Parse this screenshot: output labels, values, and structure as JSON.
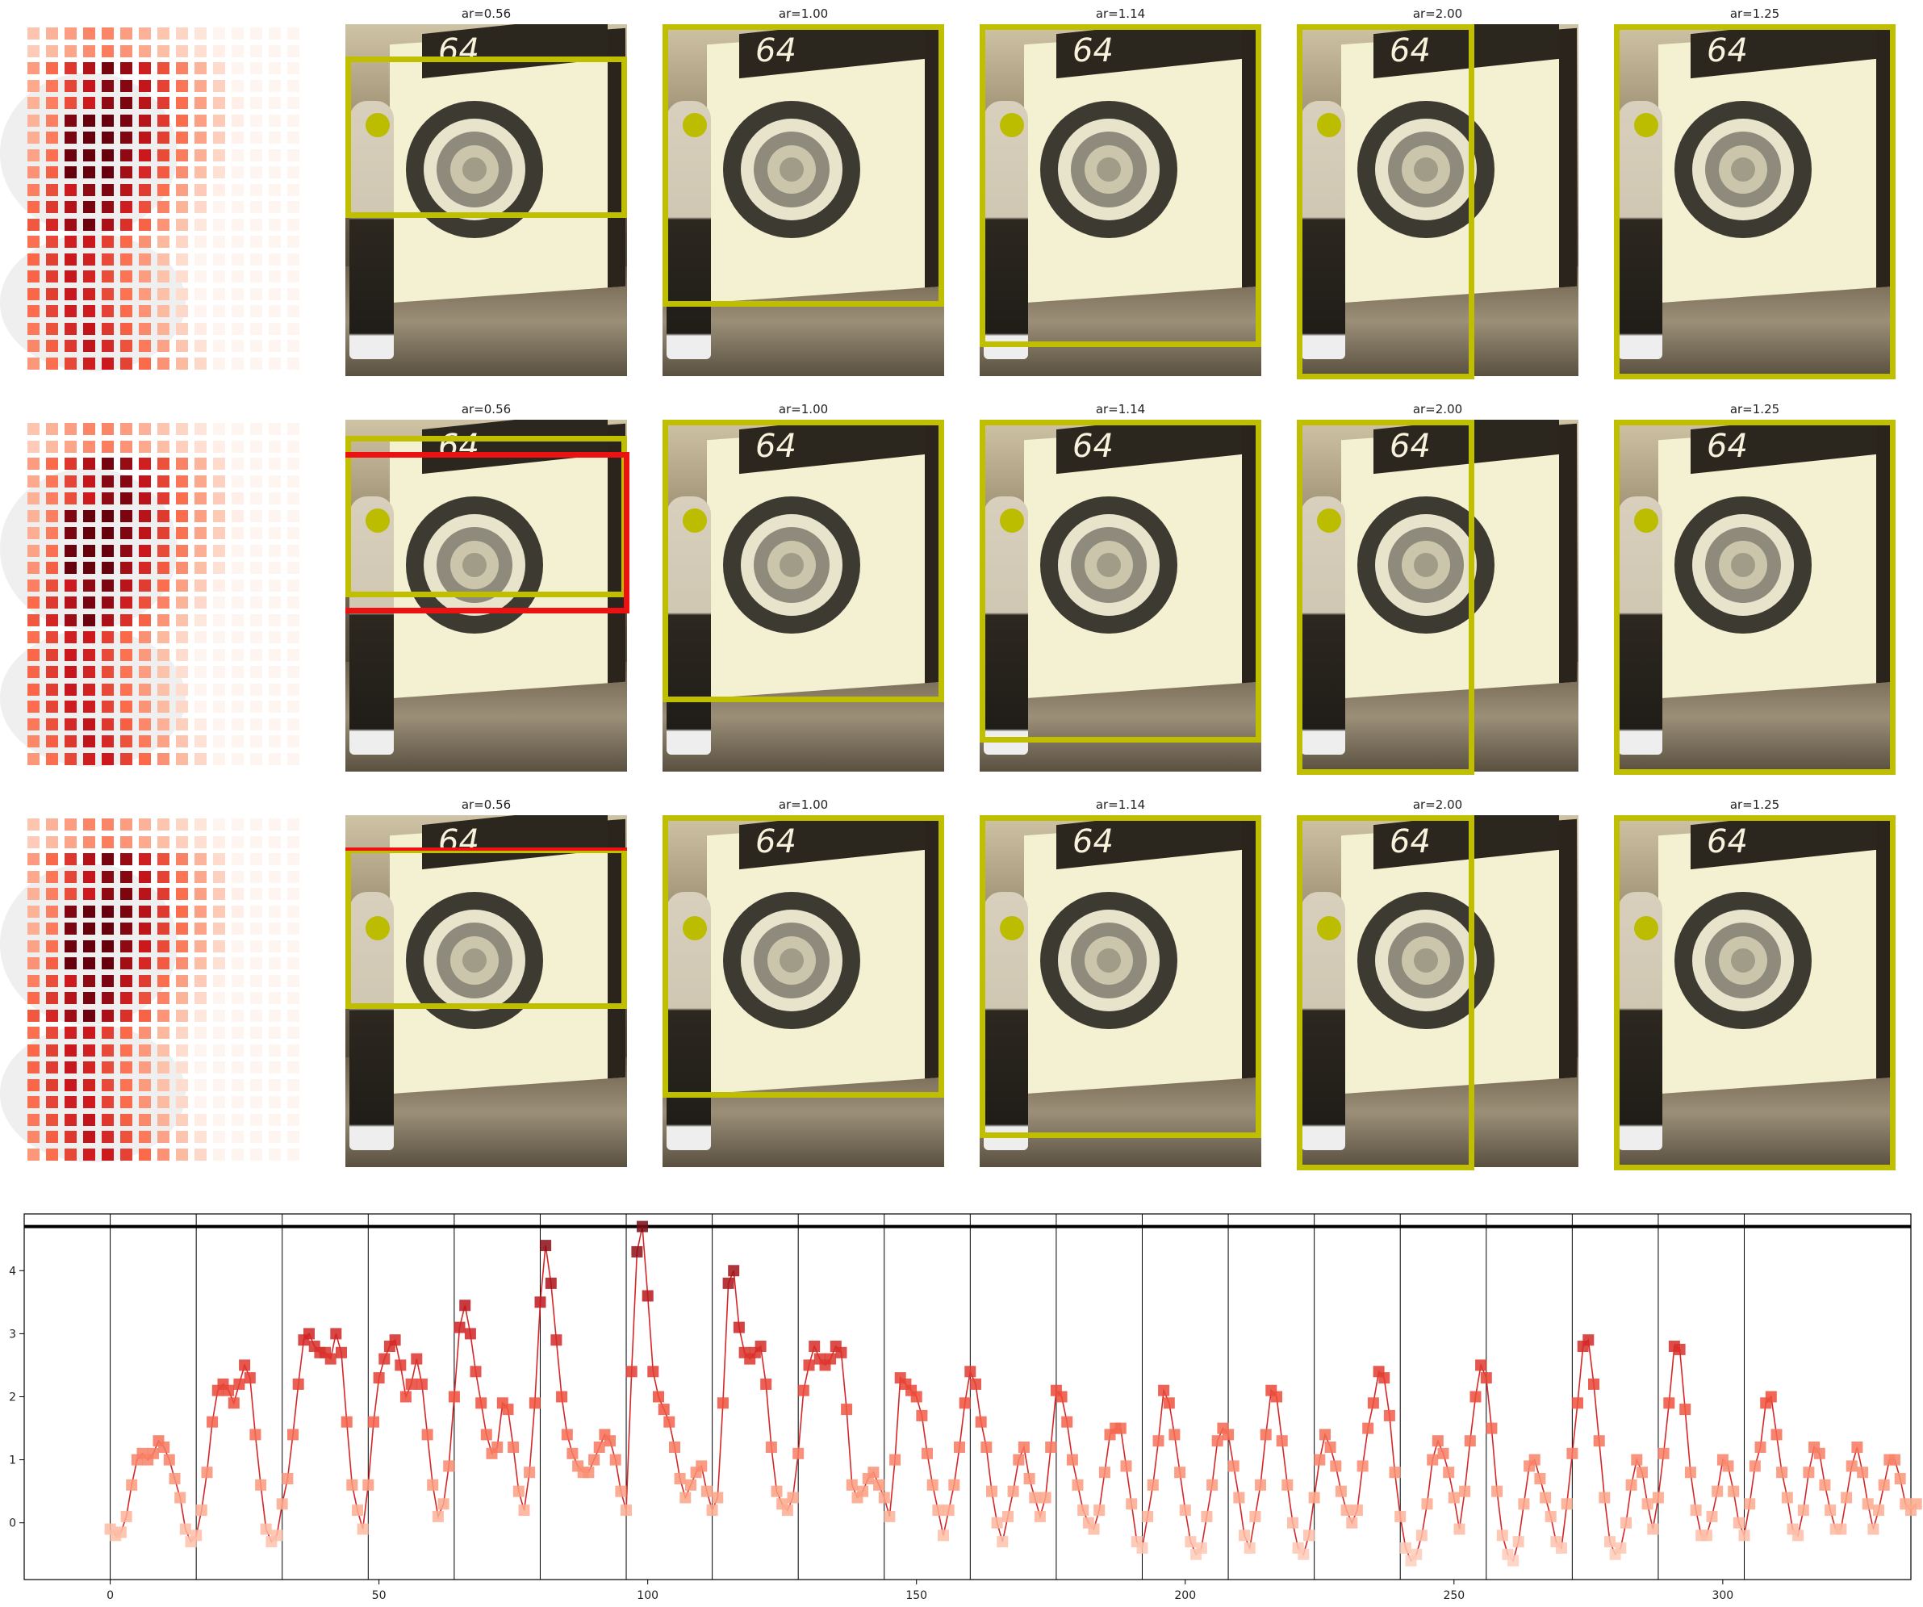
{
  "figure": {
    "panel_titles": [
      "ar=0.56",
      "ar=1.00",
      "ar=1.14",
      "ar=2.00",
      "ar=1.25"
    ],
    "board_number": "64",
    "heatmap_color": "#c0392b",
    "box_color": "#bfbf00",
    "red_box_color": "#ee1111"
  },
  "chart_data": {
    "type": "line",
    "xlim": [
      -16,
      335
    ],
    "ylim": [
      -0.9,
      4.9
    ],
    "xticks": [
      0,
      50,
      100,
      150,
      200,
      250,
      300
    ],
    "yticks": [
      0,
      1,
      2,
      3,
      4
    ],
    "threshold": 4.7,
    "vlines": [
      0,
      16,
      32,
      48,
      64,
      80,
      96,
      112,
      128,
      144,
      160,
      176,
      192,
      208,
      224,
      240,
      256,
      272,
      288,
      304
    ],
    "line_color": "#d62728",
    "series": [
      {
        "values": [
          -0.1,
          -0.2,
          -0.15,
          0.1,
          0.6,
          1.0,
          1.1,
          1.0,
          1.1,
          1.3,
          1.2,
          1.0,
          0.7,
          0.4,
          -0.1,
          -0.3,
          -0.2,
          0.2,
          0.8,
          1.6,
          2.1,
          2.2,
          2.1,
          1.9,
          2.2,
          2.5,
          2.3,
          1.4,
          0.6,
          -0.1,
          -0.3,
          -0.2,
          0.3,
          0.7,
          1.4,
          2.2,
          2.9,
          3.0,
          2.8,
          2.7,
          2.7,
          2.6,
          3.0,
          2.7,
          1.6,
          0.6,
          0.2,
          -0.1,
          0.6,
          1.6,
          2.3,
          2.6,
          2.8,
          2.9,
          2.5,
          2.0,
          2.2,
          2.6,
          2.2,
          1.4,
          0.6,
          0.1,
          0.3,
          0.9,
          2.0,
          3.1,
          3.45,
          3.0,
          2.4,
          1.9,
          1.4,
          1.1,
          1.2,
          1.9,
          1.8,
          1.2,
          0.5,
          0.2,
          0.8,
          1.9,
          3.5,
          4.4,
          3.8,
          2.9,
          2.0,
          1.4,
          1.1,
          0.9,
          0.8,
          0.8,
          1.0,
          1.2,
          1.4,
          1.3,
          1.0,
          0.5,
          0.2,
          2.4,
          4.3,
          4.7,
          3.6,
          2.4,
          2.0,
          1.8,
          1.6,
          1.2,
          0.7,
          0.4,
          0.6,
          0.8,
          0.9,
          0.5,
          0.2,
          0.4,
          1.9,
          3.8,
          4.0,
          3.1,
          2.7,
          2.6,
          2.7,
          2.8,
          2.2,
          1.2,
          0.5,
          0.3,
          0.2,
          0.4,
          1.1,
          2.1,
          2.5,
          2.8,
          2.6,
          2.5,
          2.6,
          2.8,
          2.7,
          1.8,
          0.6,
          0.4,
          0.5,
          0.7,
          0.8,
          0.6,
          0.4,
          0.1,
          1.0,
          2.3,
          2.2,
          2.1,
          2.0,
          1.7,
          1.1,
          0.6,
          0.2,
          -0.2,
          0.2,
          0.6,
          1.2,
          1.9,
          2.4,
          2.2,
          1.6,
          1.2,
          0.5,
          0.0,
          -0.3,
          0.1,
          0.5,
          1.0,
          1.2,
          0.7,
          0.4,
          0.1,
          0.4,
          1.2,
          2.1,
          2.0,
          1.6,
          1.0,
          0.6,
          0.2,
          0.0,
          -0.1,
          0.2,
          0.8,
          1.4,
          1.5,
          1.5,
          0.9,
          0.3,
          -0.3,
          -0.4,
          0.1,
          0.6,
          1.3,
          2.1,
          1.9,
          1.4,
          0.8,
          0.2,
          -0.3,
          -0.5,
          -0.4,
          0.1,
          0.6,
          1.3,
          1.5,
          1.4,
          0.9,
          0.4,
          -0.2,
          -0.4,
          0.1,
          0.6,
          1.4,
          2.1,
          2.0,
          1.3,
          0.6,
          0.0,
          -0.4,
          -0.5,
          -0.2,
          0.4,
          1.0,
          1.4,
          1.2,
          0.9,
          0.5,
          0.2,
          0.0,
          0.2,
          0.9,
          1.5,
          1.9,
          2.4,
          2.3,
          1.7,
          0.8,
          0.1,
          -0.4,
          -0.6,
          -0.5,
          -0.2,
          0.3,
          1.0,
          1.3,
          1.1,
          0.8,
          0.4,
          -0.1,
          0.5,
          1.3,
          2.0,
          2.5,
          2.3,
          1.5,
          0.5,
          -0.2,
          -0.5,
          -0.6,
          -0.3,
          0.3,
          0.9,
          1.0,
          0.7,
          0.4,
          0.1,
          -0.3,
          -0.4,
          0.3,
          1.1,
          1.9,
          2.8,
          2.9,
          2.2,
          1.3,
          0.4,
          -0.3,
          -0.5,
          -0.4,
          0.0,
          0.6,
          1.0,
          0.8,
          0.3,
          -0.1,
          0.4,
          1.1,
          1.9,
          2.8,
          2.75,
          1.8,
          0.8,
          0.2,
          -0.2,
          -0.2,
          0.1,
          0.5,
          1.0,
          0.9,
          0.5,
          0.0,
          -0.2,
          0.3,
          0.9,
          1.2,
          1.9,
          2.0,
          1.4,
          0.8,
          0.4,
          -0.1,
          -0.2,
          0.2,
          0.8,
          1.2,
          1.1,
          0.6,
          0.2,
          -0.1,
          -0.1,
          0.4,
          0.9,
          1.2,
          0.8,
          0.3,
          -0.1,
          0.2,
          0.6,
          1.0,
          1.0,
          0.7,
          0.3,
          0.2,
          0.3
        ]
      }
    ]
  }
}
